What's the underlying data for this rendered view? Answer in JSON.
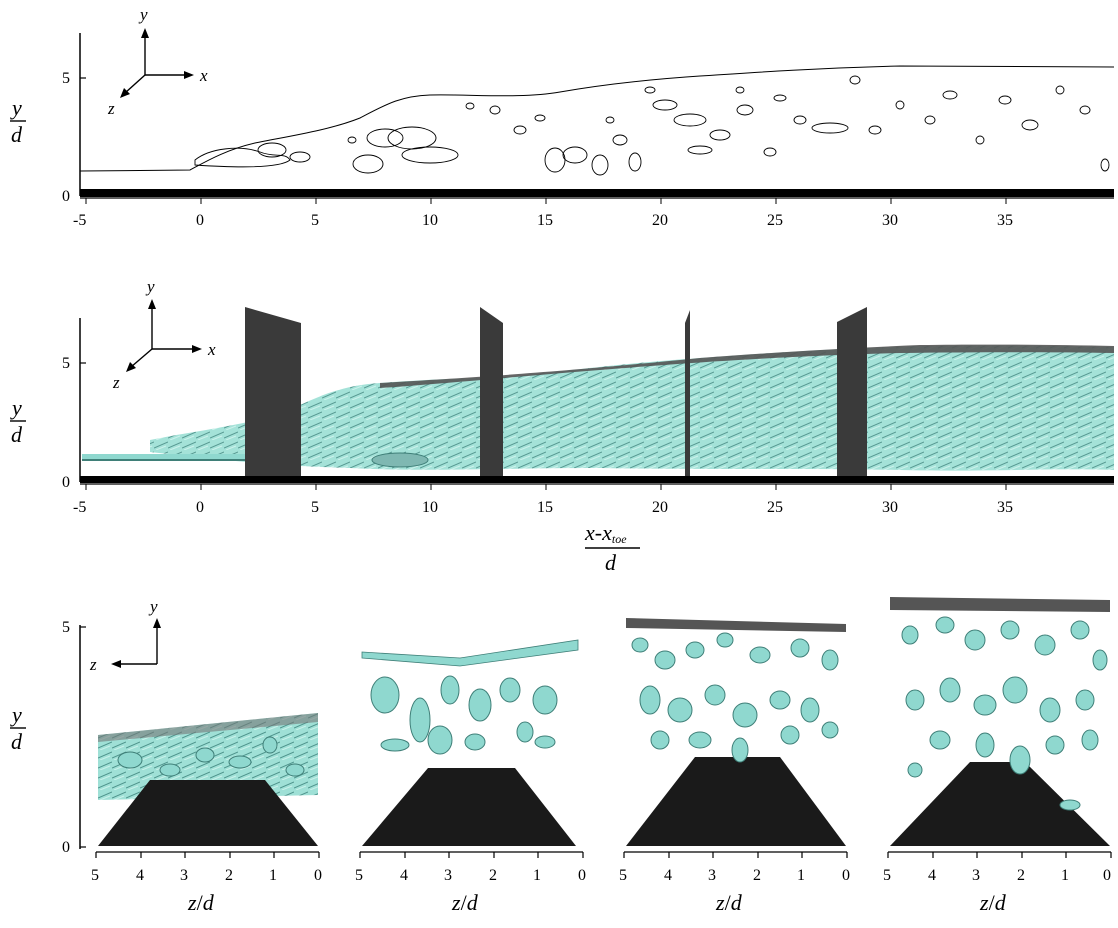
{
  "panel_a": {
    "x_ticks": [
      "-5",
      "0",
      "5",
      "10",
      "15",
      "20",
      "25",
      "30",
      "35"
    ],
    "y_ticks": [
      "0",
      "5"
    ],
    "y_label_num": "y",
    "y_label_den": "d",
    "triad": {
      "y": "y",
      "x": "x",
      "z": "z"
    }
  },
  "panel_b": {
    "x_ticks": [
      "-5",
      "0",
      "5",
      "10",
      "15",
      "20",
      "25",
      "30",
      "35"
    ],
    "y_ticks": [
      "0",
      "5"
    ],
    "y_label_num": "y",
    "y_label_den": "d",
    "x_label_num_main": "x-x",
    "x_label_num_sub": "toe",
    "x_label_den": "d",
    "triad": {
      "y": "y",
      "x": "x",
      "z": "z"
    }
  },
  "panel_c": {
    "y_ticks": [
      "0",
      "5"
    ],
    "y_label_num": "y",
    "y_label_den": "d",
    "triad": {
      "y": "y",
      "z": "z"
    },
    "z_ticks": [
      "5",
      "4",
      "3",
      "2",
      "1",
      "0"
    ],
    "sub_xlabel_var": "z",
    "sub_xlabel_sep": "/",
    "sub_xlabel_den": "d"
  },
  "colors": {
    "isosurface": "#8fd8cf",
    "isosurface_edge": "#3f7f78",
    "plane": "#3a3a3a",
    "bed": "#000000"
  }
}
